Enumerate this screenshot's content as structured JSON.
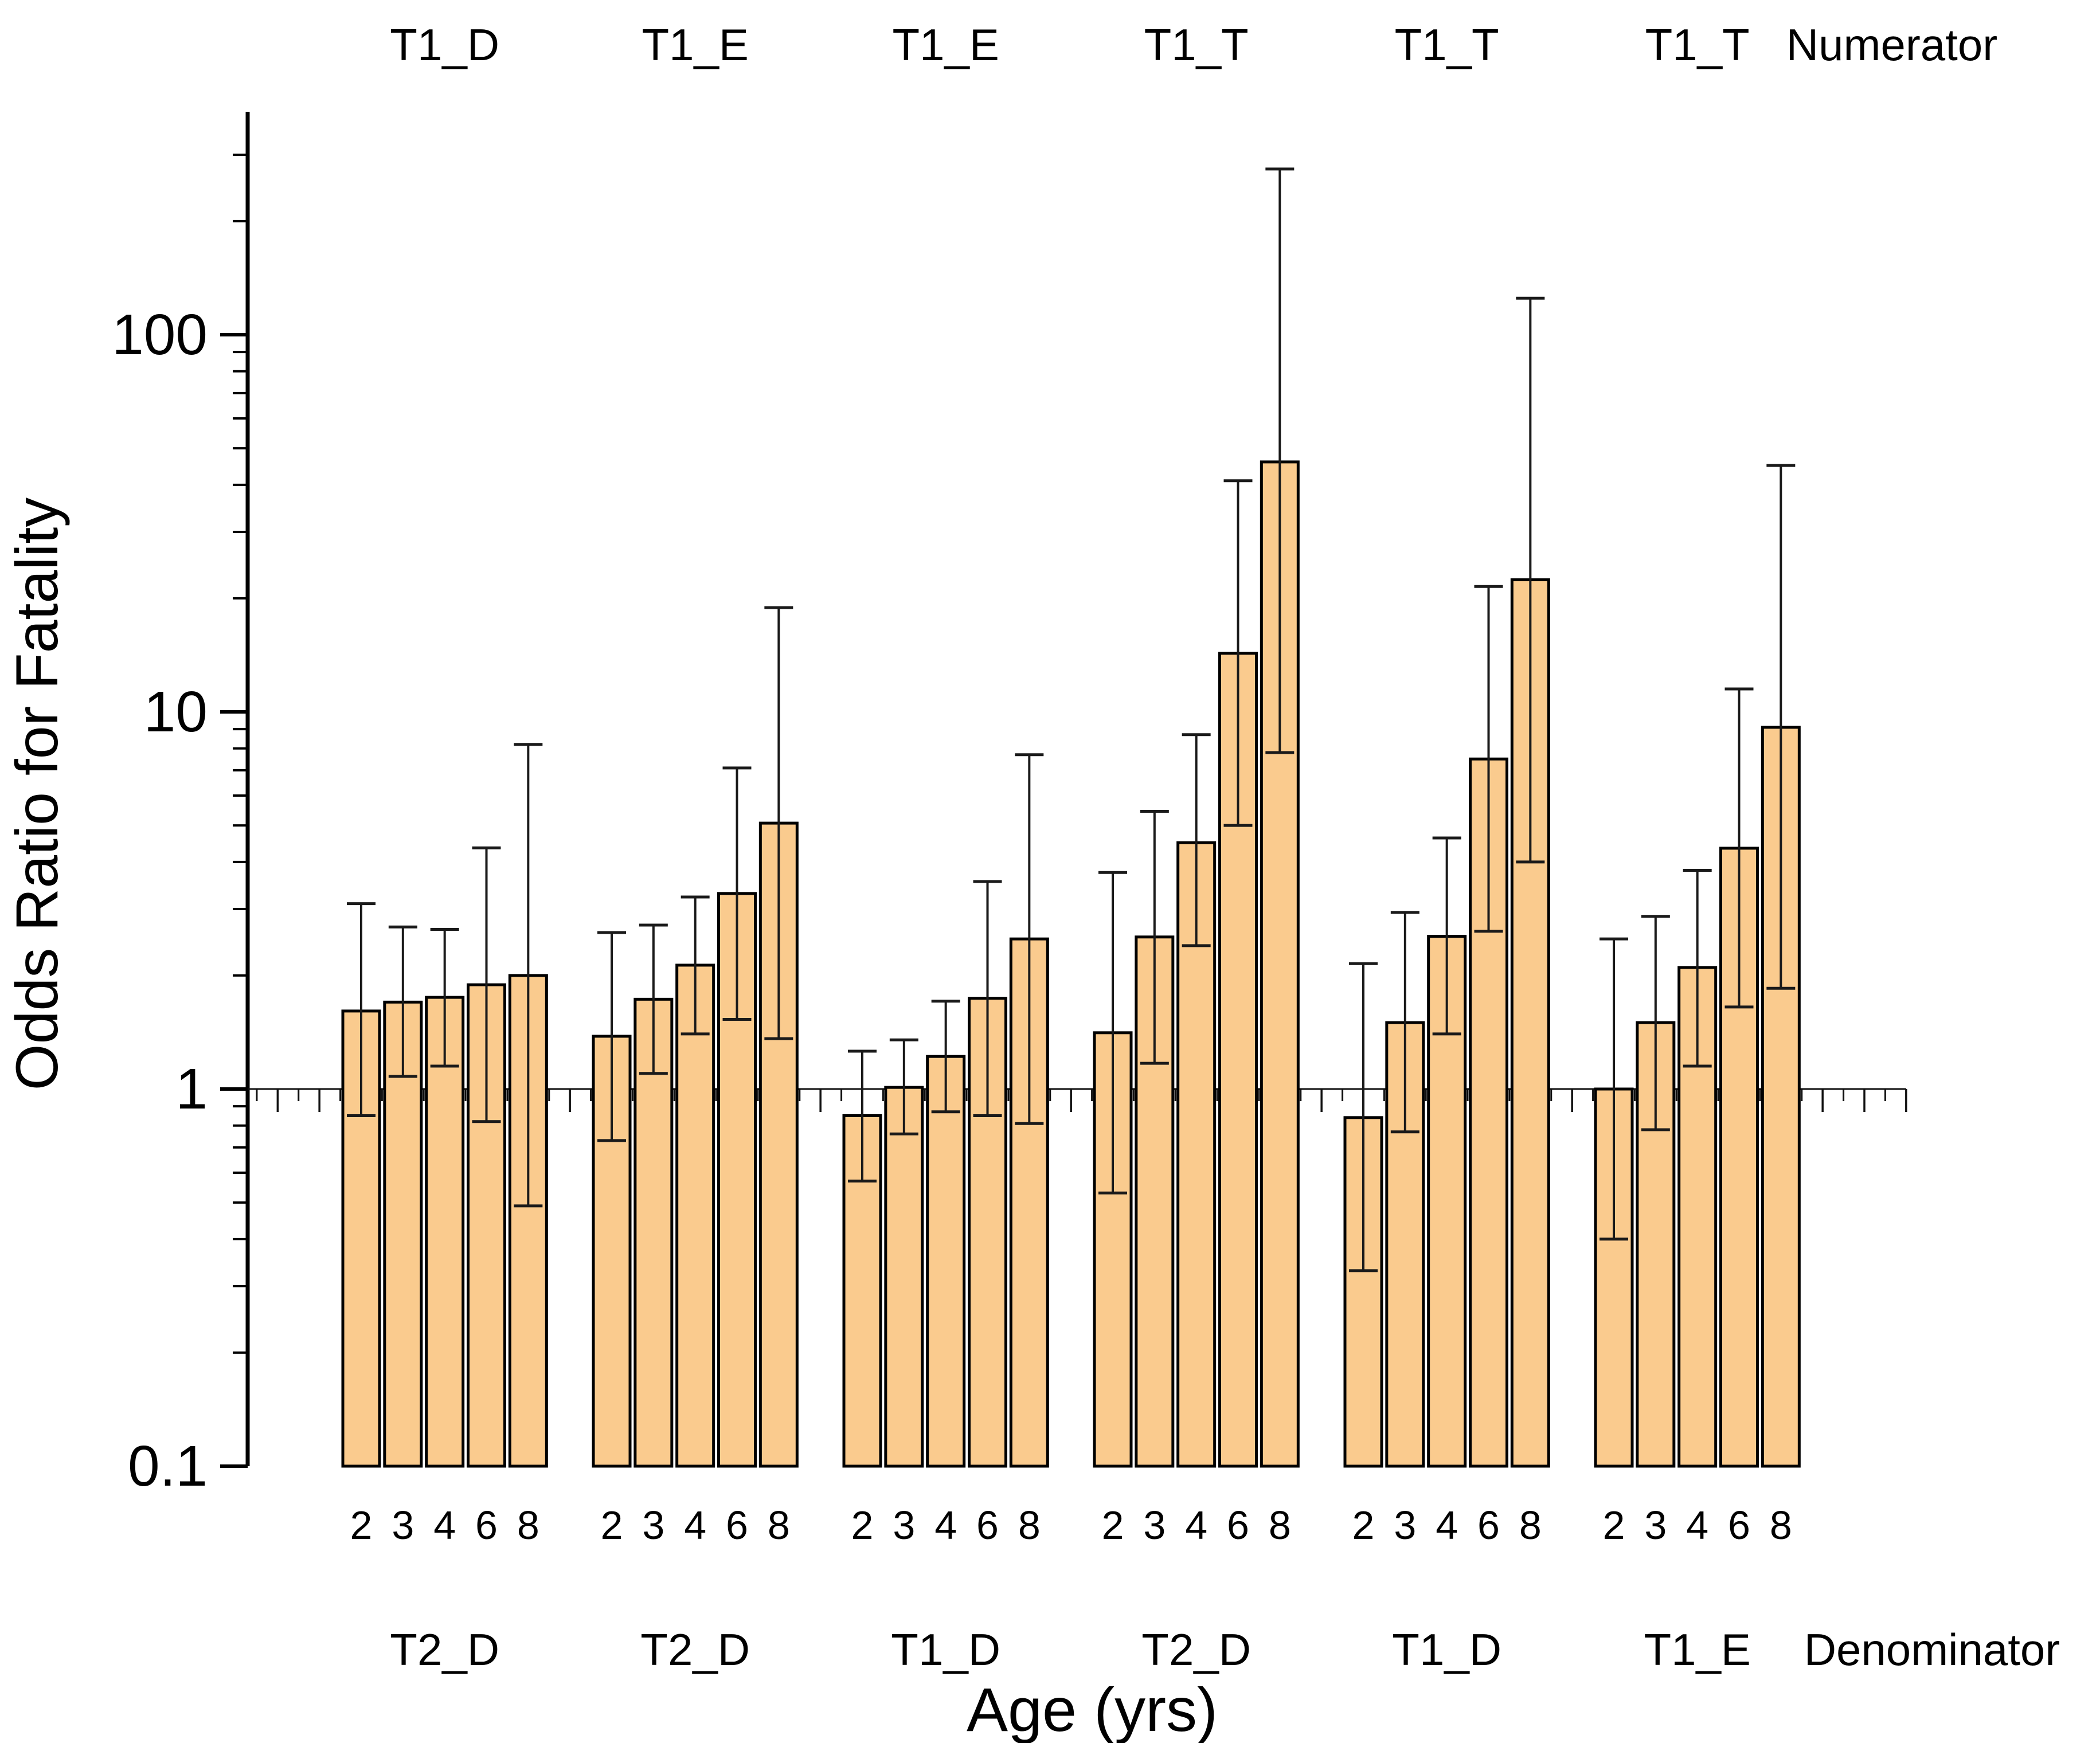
{
  "chart_data": {
    "type": "bar",
    "scale": "log-y",
    "title": "",
    "xlabel": "Age (yrs)",
    "ylabel": "Odds Ratio for Fatality",
    "ages": [
      "2",
      "3",
      "4",
      "6",
      "8"
    ],
    "y_ticks": [
      "0.1",
      "1",
      "10",
      "100"
    ],
    "ylim": [
      0.1,
      385
    ],
    "reference_line": 1,
    "grid": "off",
    "legend": "none",
    "bar_color": "#FACB8E",
    "bar_edge_color": "#000000",
    "error_bar_color": "#1a1a1a",
    "end_labels": {
      "top": "Numerator",
      "bottom": "Denominator"
    },
    "groups": [
      {
        "numerator": "T1_D",
        "denominator": "T2_D",
        "values": [
          1.61,
          1.7,
          1.75,
          1.89,
          2.0
        ],
        "ci_low": [
          0.85,
          1.08,
          1.15,
          0.82,
          0.49
        ],
        "ci_high": [
          3.1,
          2.69,
          2.65,
          4.36,
          8.2
        ]
      },
      {
        "numerator": "T1_E",
        "denominator": "T2_D",
        "values": [
          1.38,
          1.73,
          2.13,
          3.3,
          5.07
        ],
        "ci_low": [
          0.73,
          1.1,
          1.4,
          1.53,
          1.36
        ],
        "ci_high": [
          2.6,
          2.72,
          3.23,
          7.1,
          18.9
        ]
      },
      {
        "numerator": "T1_E",
        "denominator": "T1_D",
        "values": [
          0.85,
          1.01,
          1.22,
          1.74,
          2.5
        ],
        "ci_low": [
          0.57,
          0.76,
          0.87,
          0.85,
          0.81
        ],
        "ci_high": [
          1.26,
          1.35,
          1.71,
          3.55,
          7.7
        ]
      },
      {
        "numerator": "T1_T",
        "denominator": "T2_D",
        "values": [
          1.41,
          2.53,
          4.5,
          14.3,
          46.0
        ],
        "ci_low": [
          0.53,
          1.17,
          2.4,
          5.0,
          7.8
        ],
        "ci_high": [
          3.75,
          5.45,
          8.7,
          41.0,
          275
        ]
      },
      {
        "numerator": "T1_T",
        "denominator": "T1_D",
        "values": [
          0.84,
          1.5,
          2.54,
          7.5,
          22.4
        ],
        "ci_low": [
          0.33,
          0.77,
          1.4,
          2.62,
          4.0
        ],
        "ci_high": [
          2.15,
          2.94,
          4.63,
          21.5,
          125
        ]
      },
      {
        "numerator": "T1_T",
        "denominator": "T1_E",
        "values": [
          1.0,
          1.5,
          2.1,
          4.35,
          9.1
        ],
        "ci_low": [
          0.4,
          0.78,
          1.15,
          1.65,
          1.85
        ],
        "ci_high": [
          2.5,
          2.87,
          3.8,
          11.5,
          45.0
        ]
      }
    ]
  }
}
